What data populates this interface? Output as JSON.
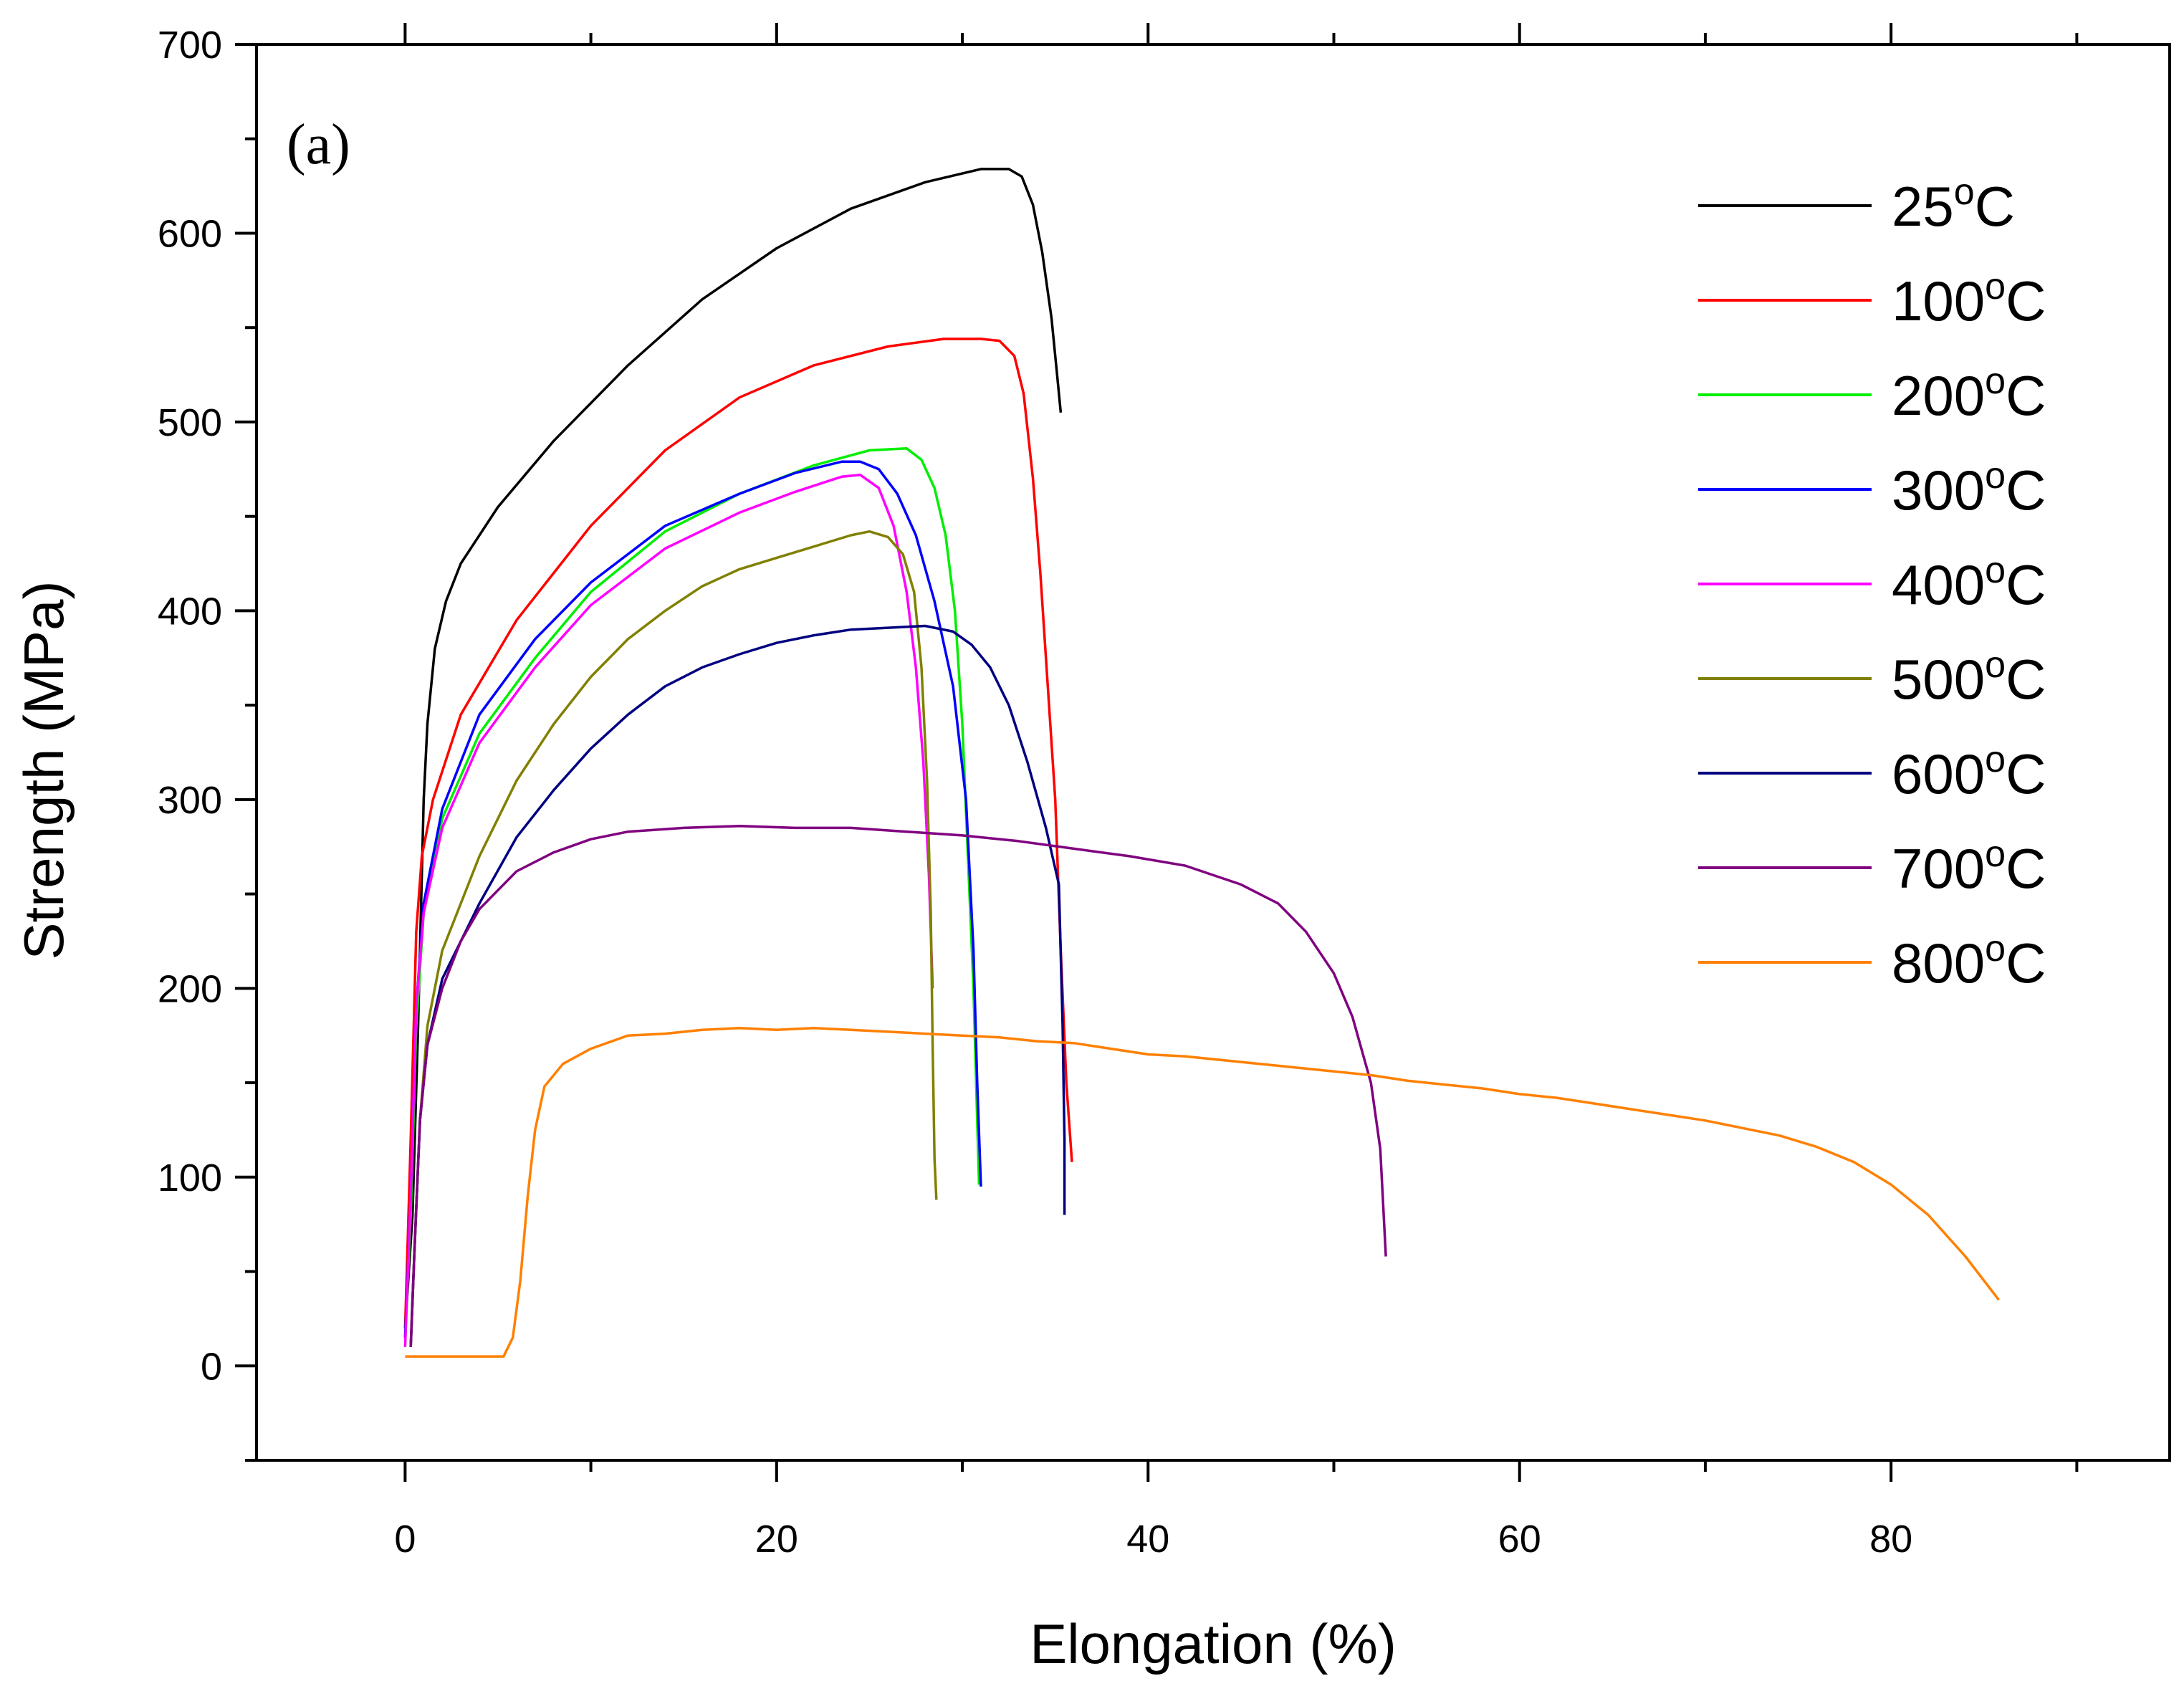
{
  "chart_data": {
    "type": "line",
    "title": "",
    "panel_label": "(a)",
    "xlabel": "Elongation (%)",
    "ylabel": "Strength (MPa)",
    "xlim": [
      -8,
      95
    ],
    "ylim": [
      -50,
      700
    ],
    "xticks": [
      0,
      20,
      40,
      60,
      80
    ],
    "yticks": [
      0,
      100,
      200,
      300,
      400,
      500,
      600,
      700
    ],
    "legend_position": "top-right",
    "series": [
      {
        "name": "25",
        "unit": "oC",
        "color": "#000000",
        "points": [
          [
            0,
            20
          ],
          [
            0.4,
            80
          ],
          [
            0.7,
            180
          ],
          [
            1,
            300
          ],
          [
            1.2,
            340
          ],
          [
            1.6,
            380
          ],
          [
            2.2,
            405
          ],
          [
            3,
            425
          ],
          [
            5,
            455
          ],
          [
            8,
            490
          ],
          [
            12,
            530
          ],
          [
            16,
            565
          ],
          [
            20,
            592
          ],
          [
            24,
            613
          ],
          [
            28,
            627
          ],
          [
            31,
            634
          ],
          [
            32.5,
            634
          ],
          [
            33.2,
            630
          ],
          [
            33.8,
            615
          ],
          [
            34.3,
            590
          ],
          [
            34.8,
            555
          ],
          [
            35.1,
            525
          ],
          [
            35.3,
            505
          ]
        ]
      },
      {
        "name": "100",
        "unit": "oC",
        "color": "#ff0000",
        "points": [
          [
            0,
            20
          ],
          [
            0.3,
            120
          ],
          [
            0.6,
            230
          ],
          [
            0.9,
            270
          ],
          [
            1.5,
            300
          ],
          [
            3,
            345
          ],
          [
            6,
            395
          ],
          [
            10,
            445
          ],
          [
            14,
            485
          ],
          [
            18,
            513
          ],
          [
            22,
            530
          ],
          [
            26,
            540
          ],
          [
            29,
            544
          ],
          [
            31,
            544
          ],
          [
            32,
            543
          ],
          [
            32.8,
            535
          ],
          [
            33.3,
            515
          ],
          [
            33.8,
            470
          ],
          [
            34.2,
            420
          ],
          [
            34.6,
            360
          ],
          [
            35,
            300
          ],
          [
            35.3,
            220
          ],
          [
            35.6,
            150
          ],
          [
            35.9,
            108
          ]
        ]
      },
      {
        "name": "200",
        "unit": "oC",
        "color": "#00ee00",
        "points": [
          [
            0,
            15
          ],
          [
            0.3,
            80
          ],
          [
            0.6,
            180
          ],
          [
            1,
            240
          ],
          [
            2,
            290
          ],
          [
            4,
            335
          ],
          [
            7,
            375
          ],
          [
            10,
            410
          ],
          [
            14,
            442
          ],
          [
            18,
            462
          ],
          [
            22,
            477
          ],
          [
            25,
            485
          ],
          [
            27,
            486
          ],
          [
            27.8,
            480
          ],
          [
            28.5,
            465
          ],
          [
            29.1,
            440
          ],
          [
            29.6,
            400
          ],
          [
            30,
            340
          ],
          [
            30.3,
            270
          ],
          [
            30.6,
            200
          ],
          [
            30.8,
            130
          ],
          [
            30.9,
            96
          ]
        ]
      },
      {
        "name": "300",
        "unit": "oC",
        "color": "#0000ff",
        "points": [
          [
            0,
            15
          ],
          [
            0.3,
            90
          ],
          [
            0.6,
            190
          ],
          [
            1,
            245
          ],
          [
            2,
            295
          ],
          [
            4,
            345
          ],
          [
            7,
            385
          ],
          [
            10,
            415
          ],
          [
            14,
            445
          ],
          [
            18,
            462
          ],
          [
            21,
            473
          ],
          [
            23.5,
            479
          ],
          [
            24.5,
            479
          ],
          [
            25.5,
            475
          ],
          [
            26.5,
            462
          ],
          [
            27.5,
            440
          ],
          [
            28.5,
            405
          ],
          [
            29.5,
            360
          ],
          [
            30.2,
            300
          ],
          [
            30.6,
            220
          ],
          [
            30.8,
            150
          ],
          [
            31,
            95
          ]
        ]
      },
      {
        "name": "400",
        "unit": "oC",
        "color": "#ff00ff",
        "points": [
          [
            0,
            10
          ],
          [
            0.3,
            90
          ],
          [
            0.6,
            190
          ],
          [
            1,
            240
          ],
          [
            2,
            285
          ],
          [
            4,
            330
          ],
          [
            7,
            370
          ],
          [
            10,
            403
          ],
          [
            14,
            433
          ],
          [
            18,
            452
          ],
          [
            21,
            463
          ],
          [
            23.5,
            471
          ],
          [
            24.5,
            472
          ],
          [
            25.5,
            465
          ],
          [
            26.3,
            445
          ],
          [
            27,
            410
          ],
          [
            27.5,
            370
          ],
          [
            27.9,
            320
          ],
          [
            28.2,
            260
          ],
          [
            28.4,
            200
          ]
        ]
      },
      {
        "name": "500",
        "unit": "oC",
        "color": "#808000",
        "points": [
          [
            0.3,
            10
          ],
          [
            0.5,
            60
          ],
          [
            0.8,
            130
          ],
          [
            1.2,
            180
          ],
          [
            2,
            220
          ],
          [
            4,
            270
          ],
          [
            6,
            310
          ],
          [
            8,
            340
          ],
          [
            10,
            365
          ],
          [
            12,
            385
          ],
          [
            14,
            400
          ],
          [
            16,
            413
          ],
          [
            18,
            422
          ],
          [
            20,
            428
          ],
          [
            22,
            434
          ],
          [
            24,
            440
          ],
          [
            25,
            442
          ],
          [
            26,
            439
          ],
          [
            26.8,
            430
          ],
          [
            27.4,
            410
          ],
          [
            27.8,
            370
          ],
          [
            28.1,
            310
          ],
          [
            28.3,
            240
          ],
          [
            28.4,
            170
          ],
          [
            28.5,
            110
          ],
          [
            28.6,
            88
          ]
        ]
      },
      {
        "name": "600",
        "unit": "oC",
        "color": "#000080",
        "points": [
          [
            0.3,
            10
          ],
          [
            0.5,
            60
          ],
          [
            0.8,
            130
          ],
          [
            1.2,
            170
          ],
          [
            2,
            205
          ],
          [
            4,
            245
          ],
          [
            6,
            280
          ],
          [
            8,
            305
          ],
          [
            10,
            327
          ],
          [
            12,
            345
          ],
          [
            14,
            360
          ],
          [
            16,
            370
          ],
          [
            18,
            377
          ],
          [
            20,
            383
          ],
          [
            22,
            387
          ],
          [
            24,
            390
          ],
          [
            26,
            391
          ],
          [
            28,
            392
          ],
          [
            29.5,
            389
          ],
          [
            30.5,
            382
          ],
          [
            31.5,
            370
          ],
          [
            32.5,
            350
          ],
          [
            33.5,
            320
          ],
          [
            34.5,
            285
          ],
          [
            35.2,
            255
          ],
          [
            35.4,
            180
          ],
          [
            35.5,
            120
          ],
          [
            35.5,
            80
          ]
        ]
      },
      {
        "name": "700",
        "unit": "oC",
        "color": "#800080",
        "points": [
          [
            0.3,
            10
          ],
          [
            0.5,
            60
          ],
          [
            0.8,
            130
          ],
          [
            1.2,
            170
          ],
          [
            2,
            200
          ],
          [
            3,
            225
          ],
          [
            4,
            242
          ],
          [
            6,
            262
          ],
          [
            8,
            272
          ],
          [
            10,
            279
          ],
          [
            12,
            283
          ],
          [
            15,
            285
          ],
          [
            18,
            286
          ],
          [
            21,
            285
          ],
          [
            24,
            285
          ],
          [
            27,
            283
          ],
          [
            30,
            281
          ],
          [
            33,
            278
          ],
          [
            36,
            274
          ],
          [
            39,
            270
          ],
          [
            42,
            265
          ],
          [
            45,
            255
          ],
          [
            47,
            245
          ],
          [
            48.5,
            230
          ],
          [
            50,
            208
          ],
          [
            51,
            185
          ],
          [
            52,
            150
          ],
          [
            52.5,
            115
          ],
          [
            52.8,
            58
          ]
        ]
      },
      {
        "name": "800",
        "unit": "oC",
        "color": "#ff8000",
        "points": [
          [
            0,
            5
          ],
          [
            3,
            5
          ],
          [
            5.3,
            5
          ],
          [
            5.8,
            15
          ],
          [
            6.2,
            45
          ],
          [
            6.6,
            90
          ],
          [
            7,
            125
          ],
          [
            7.5,
            148
          ],
          [
            8.5,
            160
          ],
          [
            10,
            168
          ],
          [
            12,
            175
          ],
          [
            14,
            176
          ],
          [
            16,
            178
          ],
          [
            18,
            179
          ],
          [
            20,
            178
          ],
          [
            22,
            179
          ],
          [
            24,
            178
          ],
          [
            26,
            177
          ],
          [
            28,
            176
          ],
          [
            30,
            175
          ],
          [
            32,
            174
          ],
          [
            34,
            172
          ],
          [
            36,
            171
          ],
          [
            38,
            168
          ],
          [
            40,
            165
          ],
          [
            42,
            164
          ],
          [
            44,
            162
          ],
          [
            46,
            160
          ],
          [
            48,
            158
          ],
          [
            50,
            156
          ],
          [
            52,
            154
          ],
          [
            54,
            151
          ],
          [
            56,
            149
          ],
          [
            58,
            147
          ],
          [
            60,
            144
          ],
          [
            62,
            142
          ],
          [
            64,
            139
          ],
          [
            66,
            136
          ],
          [
            68,
            133
          ],
          [
            70,
            130
          ],
          [
            72,
            126
          ],
          [
            74,
            122
          ],
          [
            76,
            116
          ],
          [
            78,
            108
          ],
          [
            80,
            96
          ],
          [
            82,
            80
          ],
          [
            84,
            58
          ],
          [
            85.8,
            35
          ]
        ]
      }
    ]
  }
}
